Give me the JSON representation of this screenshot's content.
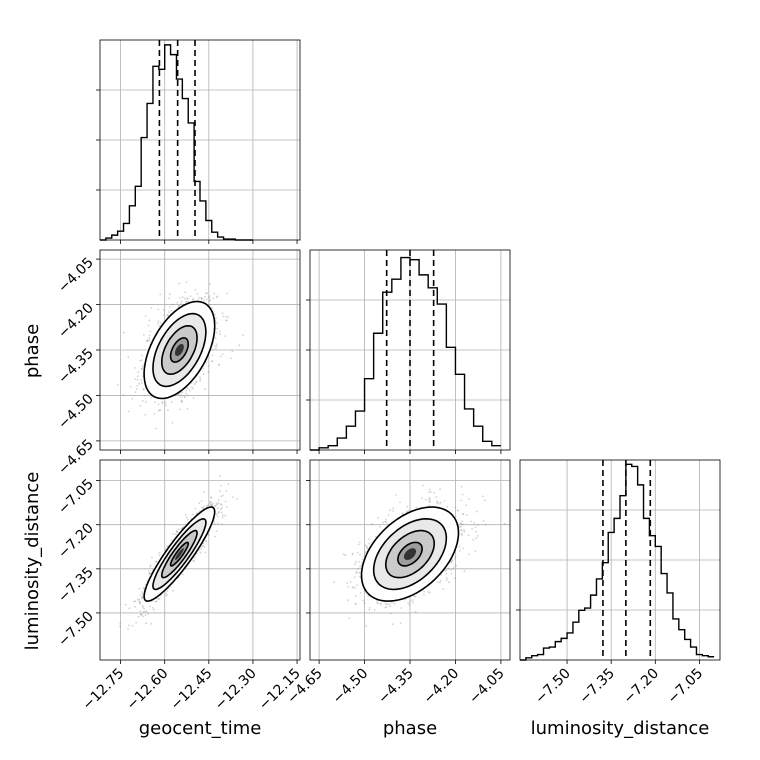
{
  "chart_data": {
    "type": "corner",
    "parameters": [
      "geocent_time",
      "phase",
      "luminosity_distance"
    ],
    "grid": true,
    "colors": {
      "line": "#000000",
      "grid": "#b0b0b0",
      "points": "#808080"
    },
    "quantiles": {
      "geocent_time": [
        -12.618,
        -12.556,
        -12.497
      ],
      "phase": [
        -4.427,
        -4.35,
        -4.272
      ],
      "luminosity_distance": [
        -7.378,
        -7.3,
        -7.217
      ]
    },
    "ranges": {
      "geocent_time": [
        -12.82,
        -12.14
      ],
      "phase": [
        -4.68,
        -4.02
      ],
      "luminosity_distance": [
        -7.66,
        -6.98
      ]
    },
    "ticks": {
      "geocent_time": {
        "values": [
          -12.75,
          -12.6,
          -12.45,
          -12.3,
          -12.15
        ],
        "labels": [
          "−12.75",
          "−12.60",
          "−12.45",
          "−12.30",
          "−12.15"
        ]
      },
      "phase": {
        "values": [
          -4.65,
          -4.5,
          -4.35,
          -4.2,
          -4.05
        ],
        "labels": [
          "−4.65",
          "−4.50",
          "−4.35",
          "−4.20",
          "−4.05"
        ]
      },
      "luminosity_distance": {
        "values": [
          -7.5,
          -7.35,
          -7.2,
          -7.05
        ],
        "labels": [
          "−7.50",
          "−7.35",
          "−7.20",
          "−7.05"
        ]
      }
    },
    "histograms": [
      {
        "param": "geocent_time",
        "bins": [
          -12.82,
          -12.8,
          -12.78,
          -12.76,
          -12.74,
          -12.72,
          -12.7,
          -12.68,
          -12.66,
          -12.64,
          -12.62,
          -12.6,
          -12.58,
          -12.56,
          -12.54,
          -12.52,
          -12.5,
          -12.48,
          -12.46,
          -12.44,
          -12.42,
          -12.4,
          -12.38,
          -12.36,
          -12.34,
          -12.32,
          -12.3
        ],
        "counts": [
          0,
          2,
          5,
          9,
          17,
          35,
          55,
          105,
          140,
          178,
          175,
          200,
          190,
          165,
          145,
          120,
          60,
          40,
          20,
          8,
          3,
          1,
          1,
          0,
          0,
          0
        ],
        "ymax": 205
      },
      {
        "param": "phase",
        "bins": [
          -4.68,
          -4.65,
          -4.62,
          -4.59,
          -4.56,
          -4.53,
          -4.5,
          -4.47,
          -4.44,
          -4.41,
          -4.38,
          -4.35,
          -4.32,
          -4.29,
          -4.26,
          -4.23,
          -4.2,
          -4.17,
          -4.14,
          -4.11,
          -4.08,
          -4.05
        ],
        "counts": [
          0,
          2,
          4,
          11,
          22,
          36,
          66,
          108,
          146,
          158,
          178,
          176,
          162,
          150,
          135,
          95,
          70,
          38,
          22,
          8,
          4
        ],
        "ymax": 185
      },
      {
        "param": "luminosity_distance",
        "bins": [
          -7.66,
          -7.64,
          -7.62,
          -7.6,
          -7.58,
          -7.56,
          -7.54,
          -7.52,
          -7.5,
          -7.48,
          -7.46,
          -7.44,
          -7.42,
          -7.4,
          -7.38,
          -7.36,
          -7.34,
          -7.32,
          -7.3,
          -7.28,
          -7.26,
          -7.24,
          -7.22,
          -7.2,
          -7.18,
          -7.16,
          -7.14,
          -7.12,
          -7.1,
          -7.08,
          -7.06,
          -7.04,
          -7.02,
          -7.0
        ],
        "counts": [
          0,
          2,
          4,
          5,
          11,
          12,
          17,
          20,
          25,
          35,
          46,
          48,
          60,
          75,
          90,
          118,
          131,
          152,
          181,
          179,
          162,
          131,
          115,
          105,
          80,
          62,
          38,
          28,
          19,
          12,
          5,
          4,
          3
        ],
        "ymax": 185
      }
    ],
    "scatter_panels": [
      {
        "x": "geocent_time",
        "y": "phase",
        "center": [
          -12.55,
          -4.35
        ],
        "sigma": [
          0.06,
          0.08
        ],
        "correlation": 0.5,
        "contour_levels_sigma": [
          0.5,
          1.0,
          1.5,
          2.0
        ]
      },
      {
        "x": "geocent_time",
        "y": "luminosity_distance",
        "center": [
          -12.55,
          -7.3
        ],
        "sigma": [
          0.06,
          0.08
        ],
        "correlation": 0.9,
        "contour_levels_sigma": [
          0.5,
          1.0,
          1.5,
          2.0
        ]
      },
      {
        "x": "phase",
        "y": "luminosity_distance",
        "center": [
          -4.35,
          -7.3
        ],
        "sigma": [
          0.08,
          0.08
        ],
        "correlation": 0.45,
        "contour_levels_sigma": [
          0.5,
          1.0,
          1.5,
          2.0
        ]
      }
    ]
  }
}
